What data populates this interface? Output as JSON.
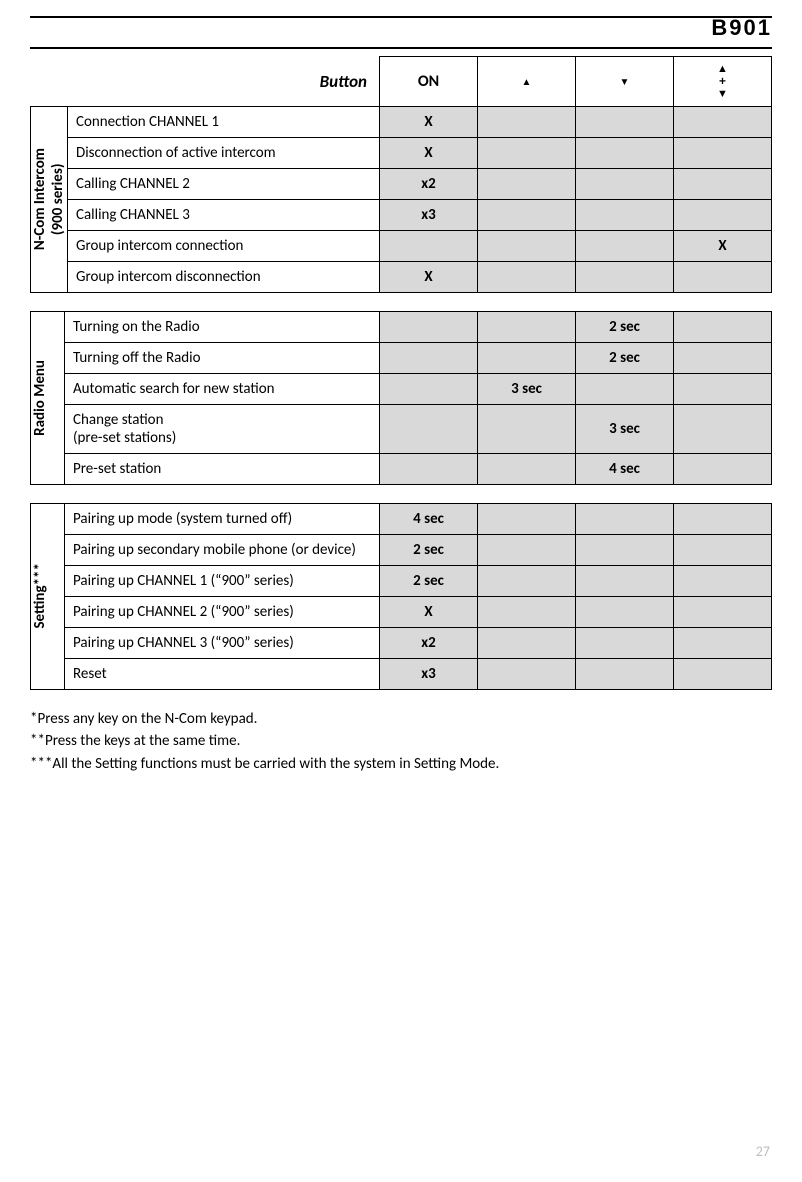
{
  "header": {
    "model": "B901"
  },
  "table_head": {
    "button_label": "Button",
    "on_label": "ON"
  },
  "table1": {
    "section_label": "N-Com Intercom\n(900 series)",
    "rows": [
      {
        "desc": "Connection CHANNEL 1",
        "on": "X",
        "up": "",
        "down": "",
        "updown": ""
      },
      {
        "desc": "Disconnection of active intercom",
        "on": "X",
        "up": "",
        "down": "",
        "updown": ""
      },
      {
        "desc": "Calling CHANNEL 2",
        "on": "x2",
        "up": "",
        "down": "",
        "updown": ""
      },
      {
        "desc": "Calling CHANNEL 3",
        "on": "x3",
        "up": "",
        "down": "",
        "updown": ""
      },
      {
        "desc": "Group intercom connection",
        "on": "",
        "up": "",
        "down": "",
        "updown": "X"
      },
      {
        "desc": "Group intercom disconnection",
        "on": "X",
        "up": "",
        "down": "",
        "updown": ""
      }
    ]
  },
  "table2": {
    "section_label": "Radio Menu",
    "rows": [
      {
        "desc": "Turning on the Radio",
        "on": "",
        "up": "",
        "down": "2 sec",
        "updown": ""
      },
      {
        "desc": "Turning off the Radio",
        "on": "",
        "up": "",
        "down": "2 sec",
        "updown": ""
      },
      {
        "desc": "Automatic search for new station",
        "on": "",
        "up": "3 sec",
        "down": "",
        "updown": ""
      },
      {
        "desc": "Change station\n(pre-set stations)",
        "on": "",
        "up": "",
        "down": "3 sec",
        "updown": ""
      },
      {
        "desc": "Pre-set station",
        "on": "",
        "up": "",
        "down": "4 sec",
        "updown": ""
      }
    ]
  },
  "table3": {
    "section_label": "Setting***",
    "rows": [
      {
        "desc": "Pairing up mode (system turned off)",
        "on": "4 sec",
        "up": "",
        "down": "",
        "updown": ""
      },
      {
        "desc": "Pairing up secondary mobile phone (or device)",
        "on": "2 sec",
        "up": "",
        "down": "",
        "updown": ""
      },
      {
        "desc": "Pairing up CHANNEL 1 (“900” series)",
        "on": "2 sec",
        "up": "",
        "down": "",
        "updown": ""
      },
      {
        "desc": "Pairing up CHANNEL  2 (“900” series)",
        "on": "X",
        "up": "",
        "down": "",
        "updown": ""
      },
      {
        "desc": "Pairing up CHANNEL 3 (“900” series)",
        "on": "x2",
        "up": "",
        "down": "",
        "updown": ""
      },
      {
        "desc": "Reset",
        "on": "x3",
        "up": "",
        "down": "",
        "updown": ""
      }
    ]
  },
  "notes": {
    "n1": "*Press any key on the N-Com keypad.",
    "n2": "**Press the keys at the same time.",
    "n3": "***All the Setting functions must be carried with the system in Setting Mode."
  },
  "page_number": "27",
  "styling": {
    "shaded_color": "#d9d9d9",
    "border_color": "#000000",
    "page_num_color": "#bfbfbf",
    "body_font": "Calibri",
    "header_font": "Arial Black"
  }
}
